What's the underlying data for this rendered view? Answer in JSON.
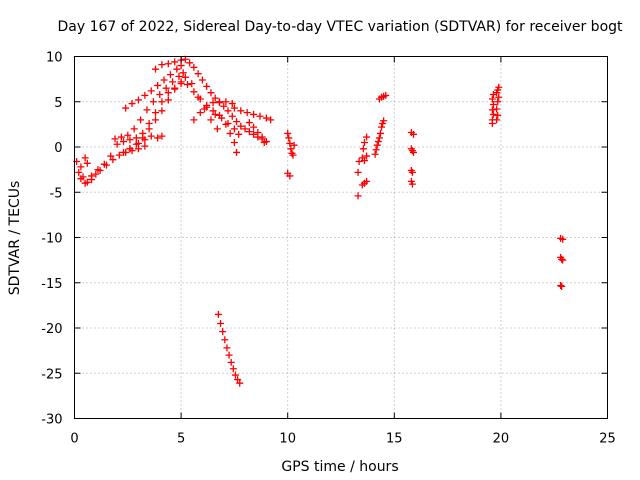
{
  "chart_data": {
    "type": "scatter",
    "title": "Day 167 of 2022, Sidereal Day-to-day VTEC variation (SDTVAR) for receiver bogt",
    "xlabel": "GPS time / hours",
    "ylabel": "SDTVAR / TECUs",
    "xlim": [
      0,
      25
    ],
    "ylim": [
      -30,
      10
    ],
    "xticks": [
      0,
      5,
      10,
      15,
      20,
      25
    ],
    "yticks": [
      -30,
      -25,
      -20,
      -15,
      -10,
      -5,
      0,
      5,
      10
    ],
    "grid": true,
    "marker": "+",
    "series": [
      {
        "name": "SDTVAR",
        "color": "#ff0000",
        "points": [
          [
            0.1,
            -1.6
          ],
          [
            0.3,
            -2.2
          ],
          [
            0.5,
            -1.2
          ],
          [
            0.6,
            -1.8
          ],
          [
            0.2,
            -2.8
          ],
          [
            0.4,
            -3.3
          ],
          [
            0.6,
            -3.9
          ],
          [
            0.8,
            -3.6
          ],
          [
            1.0,
            -3.0
          ],
          [
            1.2,
            -2.6
          ],
          [
            1.5,
            -2.0
          ],
          [
            1.8,
            -1.4
          ],
          [
            2.1,
            -0.9
          ],
          [
            2.4,
            -0.6
          ],
          [
            2.7,
            -0.4
          ],
          [
            3.0,
            -0.2
          ],
          [
            3.3,
            0.1
          ],
          [
            0.3,
            -3.5
          ],
          [
            0.5,
            -4.0
          ],
          [
            0.8,
            -3.2
          ],
          [
            1.1,
            -2.5
          ],
          [
            1.4,
            -1.9
          ],
          [
            1.7,
            -1.0
          ],
          [
            2.0,
            0.3
          ],
          [
            2.3,
            0.6
          ],
          [
            2.6,
            0.8
          ],
          [
            2.9,
            1.0
          ],
          [
            1.9,
            0.9
          ],
          [
            2.2,
            1.1
          ],
          [
            2.5,
            1.3
          ],
          [
            2.8,
            2.0
          ],
          [
            3.1,
            3.0
          ],
          [
            3.4,
            4.1
          ],
          [
            3.7,
            5.0
          ],
          [
            4.0,
            5.8
          ],
          [
            4.3,
            6.5
          ],
          [
            4.6,
            7.2
          ],
          [
            4.9,
            7.8
          ],
          [
            5.1,
            8.2
          ],
          [
            2.4,
            4.3
          ],
          [
            2.7,
            4.8
          ],
          [
            3.0,
            5.2
          ],
          [
            3.3,
            5.7
          ],
          [
            3.6,
            6.2
          ],
          [
            3.9,
            6.8
          ],
          [
            4.2,
            7.4
          ],
          [
            4.5,
            8.0
          ],
          [
            4.8,
            8.6
          ],
          [
            5.0,
            9.0
          ],
          [
            3.8,
            8.6
          ],
          [
            4.1,
            9.1
          ],
          [
            4.4,
            9.2
          ],
          [
            4.7,
            9.4
          ],
          [
            5.0,
            9.6
          ],
          [
            5.2,
            9.7
          ],
          [
            5.4,
            9.3
          ],
          [
            5.6,
            8.8
          ],
          [
            5.8,
            8.1
          ],
          [
            6.0,
            7.4
          ],
          [
            6.2,
            6.7
          ],
          [
            6.4,
            6.0
          ],
          [
            6.6,
            5.4
          ],
          [
            6.8,
            4.9
          ],
          [
            7.0,
            4.5
          ],
          [
            7.2,
            4.0
          ],
          [
            7.4,
            3.4
          ],
          [
            7.6,
            2.8
          ],
          [
            7.8,
            2.3
          ],
          [
            8.0,
            2.0
          ],
          [
            8.2,
            1.7
          ],
          [
            8.4,
            1.4
          ],
          [
            8.6,
            1.1
          ],
          [
            8.8,
            0.9
          ],
          [
            8.9,
            0.5
          ],
          [
            3.2,
            1.5
          ],
          [
            3.5,
            2.6
          ],
          [
            3.8,
            3.8
          ],
          [
            4.1,
            5.0
          ],
          [
            4.4,
            6.0
          ],
          [
            4.7,
            6.5
          ],
          [
            5.0,
            7.0
          ],
          [
            5.3,
            6.9
          ],
          [
            5.6,
            6.1
          ],
          [
            5.9,
            5.3
          ],
          [
            6.2,
            4.6
          ],
          [
            6.5,
            4.0
          ],
          [
            6.8,
            3.5
          ],
          [
            7.1,
            2.5
          ],
          [
            7.3,
            1.5
          ],
          [
            7.5,
            0.5
          ],
          [
            7.6,
            -0.6
          ],
          [
            2.6,
            -0.2
          ],
          [
            2.9,
            0.3
          ],
          [
            3.2,
            1.0
          ],
          [
            3.5,
            2.0
          ],
          [
            3.8,
            3.0
          ],
          [
            4.1,
            4.0
          ],
          [
            4.4,
            5.2
          ],
          [
            4.7,
            6.4
          ],
          [
            5.0,
            7.2
          ],
          [
            5.2,
            7.7
          ],
          [
            5.5,
            7.0
          ],
          [
            5.8,
            5.5
          ],
          [
            6.1,
            4.2
          ],
          [
            6.4,
            3.0
          ],
          [
            6.7,
            2.0
          ],
          [
            2.3,
            -0.6
          ],
          [
            2.6,
            -0.2
          ],
          [
            3.0,
            0.4
          ],
          [
            3.3,
            0.8
          ],
          [
            3.6,
            1.2
          ],
          [
            3.9,
            1.0
          ],
          [
            4.1,
            1.2
          ],
          [
            5.6,
            3.0
          ],
          [
            5.9,
            3.8
          ],
          [
            6.2,
            4.4
          ],
          [
            6.5,
            4.9
          ],
          [
            6.8,
            5.0
          ],
          [
            7.1,
            5.0
          ],
          [
            7.4,
            4.8
          ],
          [
            6.6,
            3.6
          ],
          [
            6.9,
            3.2
          ],
          [
            7.2,
            2.6
          ],
          [
            7.5,
            2.0
          ],
          [
            7.7,
            1.4
          ],
          [
            7.5,
            4.3
          ],
          [
            7.8,
            4.0
          ],
          [
            8.1,
            3.8
          ],
          [
            8.4,
            3.6
          ],
          [
            8.7,
            3.4
          ],
          [
            9.0,
            3.2
          ],
          [
            9.2,
            3.0
          ],
          [
            8.2,
            2.7
          ],
          [
            8.4,
            2.2
          ],
          [
            8.6,
            1.6
          ],
          [
            8.8,
            1.1
          ],
          [
            9.0,
            0.6
          ],
          [
            10.0,
            1.5
          ],
          [
            10.05,
            1.0
          ],
          [
            10.1,
            0.4
          ],
          [
            10.15,
            -0.2
          ],
          [
            10.2,
            -0.7
          ],
          [
            10.25,
            -0.9
          ],
          [
            10.3,
            0.2
          ],
          [
            10.0,
            -2.9
          ],
          [
            10.1,
            -3.2
          ],
          [
            13.3,
            -5.4
          ],
          [
            13.3,
            -2.8
          ],
          [
            13.35,
            -1.6
          ],
          [
            13.5,
            -1.2
          ],
          [
            13.55,
            -0.2
          ],
          [
            13.6,
            0.5
          ],
          [
            13.7,
            1.1
          ],
          [
            13.5,
            -4.2
          ],
          [
            13.6,
            -4.0
          ],
          [
            13.7,
            -3.8
          ],
          [
            13.6,
            -1.5
          ],
          [
            13.7,
            -1.0
          ],
          [
            14.1,
            -0.8
          ],
          [
            14.15,
            -0.3
          ],
          [
            14.2,
            0.2
          ],
          [
            14.25,
            0.6
          ],
          [
            14.3,
            1.0
          ],
          [
            14.35,
            1.5
          ],
          [
            14.4,
            2.2
          ],
          [
            14.45,
            2.6
          ],
          [
            14.5,
            2.9
          ],
          [
            14.3,
            5.3
          ],
          [
            14.4,
            5.5
          ],
          [
            14.5,
            5.6
          ],
          [
            14.6,
            5.7
          ],
          [
            15.8,
            1.6
          ],
          [
            15.9,
            1.4
          ],
          [
            15.8,
            -0.2
          ],
          [
            15.85,
            -0.4
          ],
          [
            15.9,
            -0.6
          ],
          [
            15.8,
            -2.6
          ],
          [
            15.85,
            -2.8
          ],
          [
            15.8,
            -3.8
          ],
          [
            15.85,
            -4.1
          ],
          [
            19.6,
            2.6
          ],
          [
            19.6,
            3.0
          ],
          [
            19.65,
            3.6
          ],
          [
            19.6,
            4.1
          ],
          [
            19.65,
            4.7
          ],
          [
            19.6,
            5.3
          ],
          [
            19.65,
            5.8
          ],
          [
            19.8,
            6.0
          ],
          [
            19.85,
            6.3
          ],
          [
            19.9,
            6.6
          ],
          [
            19.8,
            3.0
          ],
          [
            19.85,
            3.5
          ],
          [
            19.8,
            4.2
          ],
          [
            19.85,
            5.0
          ],
          [
            19.9,
            5.5
          ],
          [
            22.8,
            -10.1
          ],
          [
            22.9,
            -10.2
          ],
          [
            22.8,
            -12.2
          ],
          [
            22.85,
            -12.4
          ],
          [
            22.9,
            -12.5
          ],
          [
            22.8,
            -15.3
          ],
          [
            22.85,
            -15.4
          ],
          [
            6.75,
            -18.5
          ],
          [
            6.85,
            -19.5
          ],
          [
            6.95,
            -20.4
          ],
          [
            7.05,
            -21.3
          ],
          [
            7.15,
            -22.2
          ],
          [
            7.25,
            -23.0
          ],
          [
            7.35,
            -23.8
          ],
          [
            7.45,
            -24.5
          ],
          [
            7.55,
            -25.2
          ],
          [
            7.65,
            -25.7
          ],
          [
            7.75,
            -26.1
          ]
        ]
      }
    ]
  }
}
